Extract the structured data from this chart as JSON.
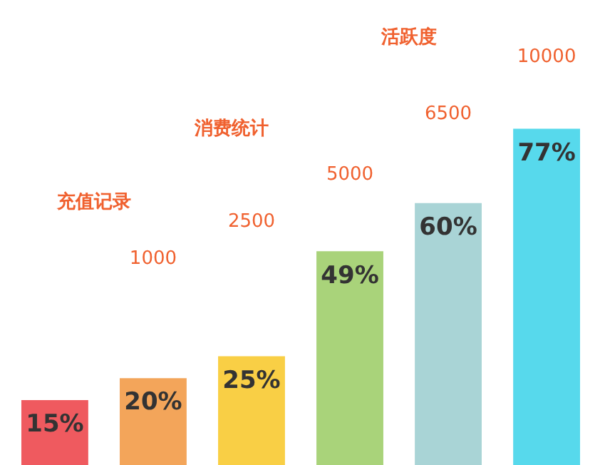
{
  "chart_data": {
    "type": "bar",
    "categories": [
      null,
      null,
      null,
      null,
      null,
      null
    ],
    "values": [
      15,
      20,
      25,
      49,
      60,
      77
    ],
    "value_labels": [
      "15%",
      "20%",
      "25%",
      "49%",
      "60%",
      "77%"
    ],
    "colors": [
      "#ef5a5f",
      "#f3a55a",
      "#f9cf45",
      "#a9d37a",
      "#a9d4d6",
      "#57d9ec"
    ],
    "annotations": [
      "充值记录",
      "消费统计",
      "活跃度",
      "1000",
      "2500",
      "5000",
      "6500",
      "10000"
    ],
    "grid": false
  }
}
